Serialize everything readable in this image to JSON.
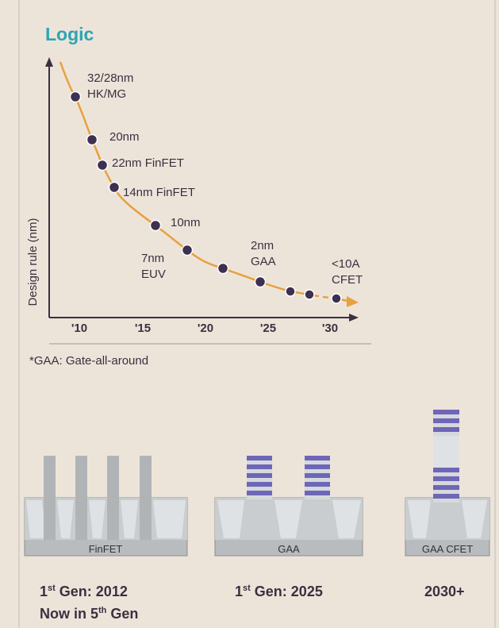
{
  "title": "Logic",
  "y_axis_label": "Design rule (nm)",
  "x_tick_labels": [
    "'10",
    "'15",
    "'20",
    "'25",
    "'30"
  ],
  "node_labels": [
    [
      "32/28nm",
      "HK/MG"
    ],
    [
      "20nm"
    ],
    [
      "22nm FinFET"
    ],
    [
      "14nm FinFET"
    ],
    [
      "10nm"
    ],
    [
      "7nm",
      "EUV"
    ],
    [
      "2nm",
      "GAA"
    ],
    [
      "<10A",
      "CFET"
    ]
  ],
  "footnote": "*GAA: Gate-all-around",
  "structures": [
    "FinFET",
    "GAA",
    "GAA CFET"
  ],
  "captions": [
    {
      "num": "1",
      "sup": "st",
      "rest": " Gen: 2012"
    },
    {
      "num": "Now  in 5",
      "sup": "th",
      "rest": " Gen"
    },
    {
      "num": "1",
      "sup": "st",
      "rest": " Gen: 2025"
    },
    {
      "num": "2030+",
      "sup": "",
      "rest": ""
    }
  ]
}
